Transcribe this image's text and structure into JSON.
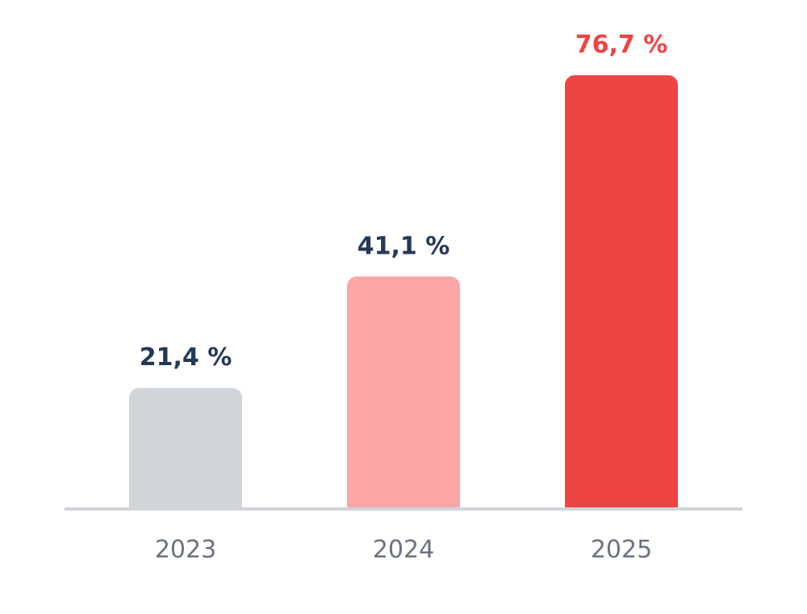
{
  "chart_data": {
    "type": "bar",
    "categories": [
      "2023",
      "2024",
      "2025"
    ],
    "values": [
      21.4,
      41.1,
      76.7
    ],
    "value_labels": [
      "21,4 %",
      "41,1 %",
      "76,7 %"
    ],
    "unit": "%",
    "title": "",
    "xlabel": "",
    "ylabel": "",
    "ylim": [
      0,
      100
    ],
    "grid": false,
    "legend": "none",
    "colors": {
      "bars": [
        "#d1d5da",
        "#fba6a6",
        "#ef4444"
      ],
      "value_labels": [
        "#253858",
        "#253858",
        "#ef4444"
      ],
      "baseline": "#d1d5da",
      "tick_labels": "#6b7280"
    }
  }
}
